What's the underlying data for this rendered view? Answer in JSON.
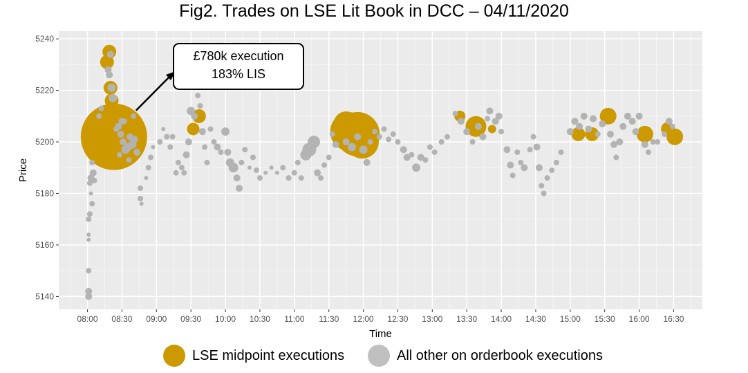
{
  "chart_data": {
    "type": "scatter",
    "title": "Fig2. Trades on LSE Lit Book in DCC – 04/11/2020",
    "xlabel": "Time",
    "ylabel": "Price",
    "xlim": [
      "07:35",
      "16:55"
    ],
    "ylim": [
      5135,
      5243
    ],
    "x_ticks": [
      "08:00",
      "08:30",
      "09:00",
      "09:30",
      "10:00",
      "10:30",
      "11:00",
      "11:30",
      "12:00",
      "12:30",
      "13:00",
      "13:30",
      "14:00",
      "14:30",
      "15:00",
      "15:30",
      "16:00",
      "16:30"
    ],
    "y_ticks": [
      5140,
      5160,
      5180,
      5200,
      5220,
      5240
    ],
    "grid": true,
    "legend_position": "bottom",
    "annotation": {
      "lines": [
        "£780k execution",
        "183% LIS"
      ],
      "points_to": [
        "08:23",
        5202
      ]
    },
    "series": [
      {
        "name": "LSE midpoint executions",
        "color": "#cc9900",
        "points": [
          [
            "08:19",
            5235,
            10
          ],
          [
            "08:17",
            5231,
            10
          ],
          [
            "08:20",
            5221,
            10
          ],
          [
            "08:21",
            5216,
            10
          ],
          [
            "08:24",
            5203,
            9
          ],
          [
            "08:23",
            5202,
            48
          ],
          [
            "09:32",
            5205,
            9
          ],
          [
            "09:37",
            5210,
            10
          ],
          [
            "11:48",
            5204,
            28
          ],
          [
            "11:55",
            5203,
            32
          ],
          [
            "11:59",
            5200,
            24
          ],
          [
            "11:45",
            5207,
            18
          ],
          [
            "13:24",
            5210,
            8
          ],
          [
            "13:38",
            5206,
            15
          ],
          [
            "13:52",
            5205,
            6
          ],
          [
            "15:07",
            5203,
            10
          ],
          [
            "15:19",
            5203,
            10
          ],
          [
            "15:33",
            5210,
            12
          ],
          [
            "16:05",
            5203,
            12
          ],
          [
            "16:25",
            5205,
            10
          ],
          [
            "16:31",
            5202,
            12
          ]
        ]
      },
      {
        "name": "All other on orderbook executions",
        "color": "#b3b3b3",
        "points": [
          [
            "08:01",
            5140,
            5
          ],
          [
            "08:01",
            5142,
            5
          ],
          [
            "08:01",
            5150,
            4
          ],
          [
            "08:01",
            5162,
            3
          ],
          [
            "08:01",
            5164,
            3
          ],
          [
            "08:01",
            5170,
            4
          ],
          [
            "08:02",
            5172,
            4
          ],
          [
            "08:04",
            5176,
            4
          ],
          [
            "08:03",
            5180,
            3
          ],
          [
            "08:02",
            5184,
            4
          ],
          [
            "08:03",
            5186,
            5
          ],
          [
            "08:05",
            5188,
            5
          ],
          [
            "08:06",
            5185,
            4
          ],
          [
            "08:04",
            5192,
            4
          ],
          [
            "08:10",
            5210,
            4
          ],
          [
            "08:12",
            5213,
            4
          ],
          [
            "08:18",
            5228,
            5
          ],
          [
            "08:20",
            5234,
            5
          ],
          [
            "08:19",
            5226,
            5
          ],
          [
            "08:21",
            5221,
            6
          ],
          [
            "08:22",
            5217,
            6
          ],
          [
            "08:27",
            5206,
            5
          ],
          [
            "08:29",
            5203,
            5
          ],
          [
            "08:31",
            5200,
            5
          ],
          [
            "08:33",
            5197,
            6
          ],
          [
            "08:35",
            5198,
            6
          ],
          [
            "08:37",
            5202,
            5
          ],
          [
            "08:39",
            5199,
            6
          ],
          [
            "08:41",
            5201,
            5
          ],
          [
            "08:43",
            5196,
            5
          ],
          [
            "08:30",
            5208,
            5
          ],
          [
            "08:28",
            5195,
            4
          ],
          [
            "08:36",
            5193,
            4
          ],
          [
            "08:40",
            5210,
            4
          ],
          [
            "08:25",
            5205,
            4
          ],
          [
            "08:32",
            5208,
            4
          ],
          [
            "08:46",
            5182,
            4
          ],
          [
            "08:46",
            5178,
            4
          ],
          [
            "08:47",
            5176,
            3
          ],
          [
            "08:51",
            5186,
            3
          ],
          [
            "08:53",
            5190,
            4
          ],
          [
            "08:55",
            5194,
            4
          ],
          [
            "08:57",
            5198,
            3
          ],
          [
            "09:03",
            5200,
            4
          ],
          [
            "09:06",
            5205,
            3
          ],
          [
            "09:09",
            5202,
            4
          ],
          [
            "09:12",
            5198,
            4
          ],
          [
            "09:14",
            5202,
            4
          ],
          [
            "09:17",
            5188,
            4
          ],
          [
            "09:19",
            5192,
            4
          ],
          [
            "09:22",
            5190,
            4
          ],
          [
            "09:24",
            5188,
            4
          ],
          [
            "09:26",
            5195,
            5
          ],
          [
            "09:28",
            5200,
            5
          ],
          [
            "09:30",
            5212,
            6
          ],
          [
            "09:33",
            5210,
            5
          ],
          [
            "09:36",
            5218,
            4
          ],
          [
            "09:38",
            5214,
            4
          ],
          [
            "09:40",
            5204,
            5
          ],
          [
            "09:42",
            5198,
            4
          ],
          [
            "09:44",
            5192,
            4
          ],
          [
            "09:47",
            5205,
            4
          ],
          [
            "09:50",
            5200,
            4
          ],
          [
            "09:53",
            5198,
            5
          ],
          [
            "09:56",
            5196,
            4
          ],
          [
            "10:00",
            5204,
            6
          ],
          [
            "10:02",
            5196,
            5
          ],
          [
            "10:04",
            5192,
            6
          ],
          [
            "10:07",
            5190,
            7
          ],
          [
            "10:10",
            5186,
            5
          ],
          [
            "10:12",
            5182,
            5
          ],
          [
            "10:14",
            5192,
            4
          ],
          [
            "10:17",
            5197,
            4
          ],
          [
            "10:21",
            5190,
            3
          ],
          [
            "10:24",
            5194,
            4
          ],
          [
            "10:27",
            5189,
            4
          ],
          [
            "10:30",
            5186,
            4
          ],
          [
            "10:35",
            5188,
            3
          ],
          [
            "10:40",
            5190,
            3
          ],
          [
            "10:45",
            5188,
            3
          ],
          [
            "10:50",
            5190,
            4
          ],
          [
            "10:55",
            5186,
            4
          ],
          [
            "11:00",
            5188,
            4
          ],
          [
            "11:03",
            5192,
            4
          ],
          [
            "11:06",
            5186,
            4
          ],
          [
            "11:10",
            5195,
            8
          ],
          [
            "11:13",
            5197,
            10
          ],
          [
            "11:17",
            5200,
            9
          ],
          [
            "11:20",
            5188,
            5
          ],
          [
            "11:23",
            5186,
            4
          ],
          [
            "11:26",
            5191,
            4
          ],
          [
            "11:30",
            5194,
            4
          ],
          [
            "11:33",
            5203,
            4
          ],
          [
            "11:36",
            5199,
            5
          ],
          [
            "11:45",
            5200,
            5
          ],
          [
            "11:50",
            5198,
            6
          ],
          [
            "11:55",
            5202,
            5
          ],
          [
            "12:00",
            5197,
            6
          ],
          [
            "12:03",
            5192,
            5
          ],
          [
            "12:06",
            5200,
            4
          ],
          [
            "12:10",
            5204,
            4
          ],
          [
            "12:14",
            5202,
            4
          ],
          [
            "12:18",
            5205,
            4
          ],
          [
            "12:22",
            5201,
            4
          ],
          [
            "12:26",
            5203,
            4
          ],
          [
            "12:30",
            5200,
            4
          ],
          [
            "12:35",
            5197,
            5
          ],
          [
            "12:38",
            5194,
            5
          ],
          [
            "12:42",
            5195,
            4
          ],
          [
            "12:46",
            5190,
            6
          ],
          [
            "12:50",
            5194,
            5
          ],
          [
            "12:54",
            5193,
            4
          ],
          [
            "12:58",
            5198,
            4
          ],
          [
            "13:02",
            5196,
            4
          ],
          [
            "13:08",
            5200,
            4
          ],
          [
            "13:13",
            5202,
            4
          ],
          [
            "13:20",
            5211,
            4
          ],
          [
            "13:25",
            5208,
            5
          ],
          [
            "13:30",
            5204,
            5
          ],
          [
            "13:35",
            5200,
            4
          ],
          [
            "13:40",
            5206,
            5
          ],
          [
            "13:44",
            5202,
            5
          ],
          [
            "13:48",
            5209,
            4
          ],
          [
            "13:50",
            5212,
            5
          ],
          [
            "13:55",
            5208,
            5
          ],
          [
            "13:58",
            5210,
            5
          ],
          [
            "14:00",
            5204,
            4
          ],
          [
            "14:05",
            5197,
            5
          ],
          [
            "14:08",
            5191,
            5
          ],
          [
            "14:10",
            5187,
            4
          ],
          [
            "14:14",
            5196,
            4
          ],
          [
            "14:17",
            5192,
            4
          ],
          [
            "14:20",
            5190,
            5
          ],
          [
            "14:25",
            5197,
            4
          ],
          [
            "14:28",
            5202,
            4
          ],
          [
            "14:31",
            5198,
            5
          ],
          [
            "14:33",
            5190,
            5
          ],
          [
            "14:35",
            5183,
            4
          ],
          [
            "14:37",
            5180,
            4
          ],
          [
            "14:40",
            5186,
            4
          ],
          [
            "14:44",
            5189,
            4
          ],
          [
            "14:48",
            5192,
            4
          ],
          [
            "14:52",
            5196,
            4
          ],
          [
            "15:00",
            5204,
            5
          ],
          [
            "15:04",
            5208,
            5
          ],
          [
            "15:08",
            5206,
            5
          ],
          [
            "15:12",
            5210,
            5
          ],
          [
            "15:16",
            5205,
            5
          ],
          [
            "15:20",
            5209,
            5
          ],
          [
            "15:24",
            5203,
            4
          ],
          [
            "15:28",
            5207,
            5
          ],
          [
            "15:35",
            5203,
            5
          ],
          [
            "15:38",
            5199,
            5
          ],
          [
            "15:40",
            5194,
            4
          ],
          [
            "15:43",
            5200,
            5
          ],
          [
            "15:46",
            5206,
            5
          ],
          [
            "15:50",
            5210,
            5
          ],
          [
            "15:54",
            5208,
            5
          ],
          [
            "15:57",
            5204,
            5
          ],
          [
            "16:00",
            5210,
            5
          ],
          [
            "16:05",
            5199,
            5
          ],
          [
            "16:08",
            5196,
            4
          ],
          [
            "16:12",
            5200,
            4
          ],
          [
            "16:16",
            5200,
            4
          ],
          [
            "16:22",
            5203,
            4
          ],
          [
            "16:26",
            5208,
            5
          ],
          [
            "16:29",
            5206,
            4
          ]
        ]
      }
    ]
  },
  "legend": {
    "items": [
      {
        "label": "LSE midpoint executions",
        "color": "#cc9900"
      },
      {
        "label": "All other on orderbook executions",
        "color": "#c0c0c0"
      }
    ]
  }
}
